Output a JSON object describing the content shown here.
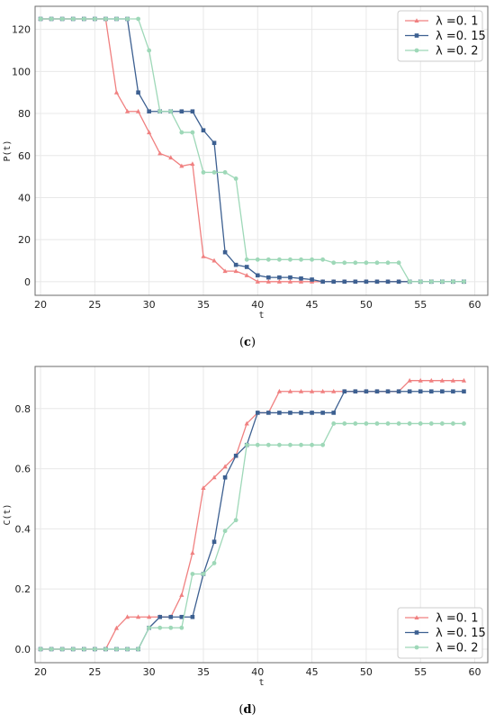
{
  "colors": {
    "s1": "#f08080",
    "s2": "#3d6091",
    "s3": "#9ed8b8",
    "grid": "#e8e8e8",
    "frame": "#6b6b6b"
  },
  "chart_data": [
    {
      "type": "line",
      "caption_open": "(",
      "caption_letter": "c",
      "caption_close": ")",
      "xlabel": "t",
      "ylabel": "P(t)",
      "xlim": [
        19.5,
        61.2
      ],
      "ylim": [
        -6.5,
        131
      ],
      "xticks": [
        20,
        25,
        30,
        35,
        40,
        45,
        50,
        55,
        60
      ],
      "yticks": [
        0,
        20,
        40,
        60,
        80,
        100,
        120
      ],
      "grid": true,
      "legend_position": "top-right",
      "x": [
        20,
        21,
        22,
        23,
        24,
        25,
        26,
        27,
        28,
        29,
        30,
        31,
        32,
        33,
        34,
        35,
        36,
        37,
        38,
        39,
        40,
        41,
        42,
        43,
        44,
        45,
        46,
        47,
        48,
        49,
        50,
        51,
        52,
        53,
        54,
        55,
        56,
        57,
        58,
        59
      ],
      "series": [
        {
          "name": "λ =0. 1",
          "color": "#f08080",
          "marker": "triangle",
          "values": [
            125,
            125,
            125,
            125,
            125,
            125,
            125,
            90,
            81,
            81,
            71,
            61,
            59,
            55,
            56,
            12,
            10,
            5,
            5,
            3,
            0,
            0,
            0,
            0,
            0,
            0,
            0,
            0,
            0,
            0,
            0,
            0,
            0,
            0,
            0,
            0,
            0,
            0,
            0,
            0
          ]
        },
        {
          "name": "λ =0. 15",
          "color": "#3d6091",
          "marker": "square",
          "values": [
            125,
            125,
            125,
            125,
            125,
            125,
            125,
            125,
            125,
            90,
            81,
            81,
            81,
            81,
            81,
            72,
            66,
            14,
            8,
            7,
            3,
            2,
            2,
            2,
            1.5,
            1,
            0,
            0,
            0,
            0,
            0,
            0,
            0,
            0,
            0,
            0,
            0,
            0,
            0,
            0
          ]
        },
        {
          "name": "λ =0. 2",
          "color": "#9ed8b8",
          "marker": "circle",
          "values": [
            125,
            125,
            125,
            125,
            125,
            125,
            125,
            125,
            125,
            125,
            110,
            81,
            81,
            71,
            71,
            52,
            52,
            52,
            49,
            10.5,
            10.5,
            10.5,
            10.5,
            10.5,
            10.5,
            10.5,
            10.5,
            9,
            9,
            9,
            9,
            9,
            9,
            9,
            0,
            0,
            0,
            0,
            0,
            0
          ]
        }
      ]
    },
    {
      "type": "line",
      "caption_open": "(",
      "caption_letter": "d",
      "caption_close": ")",
      "xlabel": "t",
      "ylabel": "C(t)",
      "xlim": [
        19.5,
        61.2
      ],
      "ylim": [
        -0.045,
        0.94
      ],
      "xticks": [
        20,
        25,
        30,
        35,
        40,
        45,
        50,
        55,
        60
      ],
      "yticks": [
        "0.0",
        "0.2",
        "0.4",
        "0.6",
        "0.8"
      ],
      "grid": true,
      "legend_position": "bottom-right",
      "x": [
        20,
        21,
        22,
        23,
        24,
        25,
        26,
        27,
        28,
        29,
        30,
        31,
        32,
        33,
        34,
        35,
        36,
        37,
        38,
        39,
        40,
        41,
        42,
        43,
        44,
        45,
        46,
        47,
        48,
        49,
        50,
        51,
        52,
        53,
        54,
        55,
        56,
        57,
        58,
        59
      ],
      "series": [
        {
          "name": "λ =0. 1",
          "color": "#f08080",
          "marker": "triangle",
          "values": [
            0,
            0,
            0,
            0,
            0,
            0,
            0,
            0.07,
            0.107,
            0.107,
            0.107,
            0.107,
            0.107,
            0.18,
            0.32,
            0.536,
            0.571,
            0.607,
            0.643,
            0.75,
            0.786,
            0.786,
            0.857,
            0.857,
            0.857,
            0.857,
            0.857,
            0.857,
            0.857,
            0.857,
            0.857,
            0.857,
            0.857,
            0.857,
            0.893,
            0.893,
            0.893,
            0.893,
            0.893,
            0.893
          ]
        },
        {
          "name": "λ =0. 15",
          "color": "#3d6091",
          "marker": "square",
          "values": [
            0,
            0,
            0,
            0,
            0,
            0,
            0,
            0,
            0,
            0,
            0.071,
            0.107,
            0.107,
            0.107,
            0.107,
            0.25,
            0.357,
            0.571,
            0.643,
            0.679,
            0.786,
            0.786,
            0.786,
            0.786,
            0.786,
            0.786,
            0.786,
            0.786,
            0.857,
            0.857,
            0.857,
            0.857,
            0.857,
            0.857,
            0.857,
            0.857,
            0.857,
            0.857,
            0.857,
            0.857
          ]
        },
        {
          "name": "λ =0. 2",
          "color": "#9ed8b8",
          "marker": "circle",
          "values": [
            0,
            0,
            0,
            0,
            0,
            0,
            0,
            0,
            0,
            0,
            0.071,
            0.071,
            0.071,
            0.071,
            0.25,
            0.25,
            0.286,
            0.393,
            0.429,
            0.679,
            0.679,
            0.679,
            0.679,
            0.679,
            0.679,
            0.679,
            0.679,
            0.75,
            0.75,
            0.75,
            0.75,
            0.75,
            0.75,
            0.75,
            0.75,
            0.75,
            0.75,
            0.75,
            0.75,
            0.75
          ]
        }
      ]
    }
  ]
}
